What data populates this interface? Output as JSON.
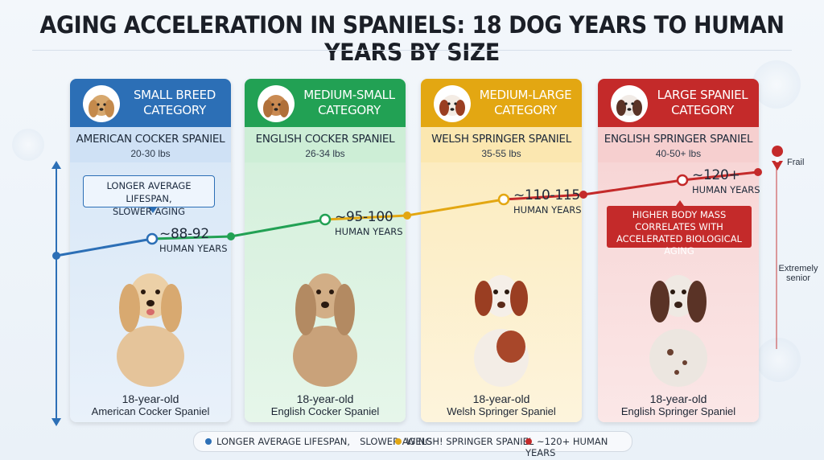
{
  "title": "AGING ACCELERATION IN SPANIELS: 18 DOG YEARS TO HUMAN YEARS BY SIZE",
  "colors": {
    "blue": "#2c6fb6",
    "green": "#22a154",
    "yellow": "#e3a712",
    "red": "#c42a2a"
  },
  "categories": [
    {
      "head_line1": "SMALL BREED",
      "head_line2": "CATEGORY",
      "breed": "AMERICAN COCKER SPANIEL",
      "weight": "20-30 lbs",
      "human_years": "~88-92",
      "human_years_label": "HUMAN YEARS",
      "caption_line1": "18-year-old",
      "caption_line2": "American Cocker Spaniel"
    },
    {
      "head_line1": "MEDIUM-SMALL",
      "head_line2": "CATEGORY",
      "breed": "ENGLISH COCKER SPANIEL",
      "weight": "26-34 lbs",
      "human_years": "~95-100",
      "human_years_label": "HUMAN YEARS",
      "caption_line1": "18-year-old",
      "caption_line2": "English Cocker Spaniel"
    },
    {
      "head_line1": "MEDIUM-LARGE",
      "head_line2": "CATEGORY",
      "breed": "WELSH SPRINGER SPANIEL",
      "weight": "35-55 lbs",
      "human_years": "~110-115",
      "human_years_label": "HUMAN YEARS",
      "caption_line1": "18-year-old",
      "caption_line2": "Welsh Springer Spaniel"
    },
    {
      "head_line1": "LARGE SPANIEL",
      "head_line2": "CATEGORY",
      "breed": "ENGLISH SPRINGER SPANIEL",
      "weight": "40-50+ lbs",
      "human_years": "~120+",
      "human_years_label": "HUMAN YEARS",
      "caption_line1": "18-year-old",
      "caption_line2": "English Springer Spaniel"
    }
  ],
  "notes": {
    "blue_line1": "LONGER AVERAGE LIFESPAN,",
    "blue_line2": "SLOWER AGING",
    "red_line1": "HIGHER BODY MASS",
    "red_line2": "CORRELATES WITH",
    "red_line3": "ACCELERATED BIOLOGICAL AGING"
  },
  "side_labels": {
    "frail": "Frail",
    "extremely_senior_line1": "Extremely",
    "extremely_senior_line2": "senior"
  },
  "legend": {
    "item1": "LONGER AVERAGE LIFESPAN,",
    "item1b": "SLOWER AGING",
    "item2": "WELSH! SPRINGER SPANIEL",
    "item3": "~120+ HUMAN YEARS"
  }
}
